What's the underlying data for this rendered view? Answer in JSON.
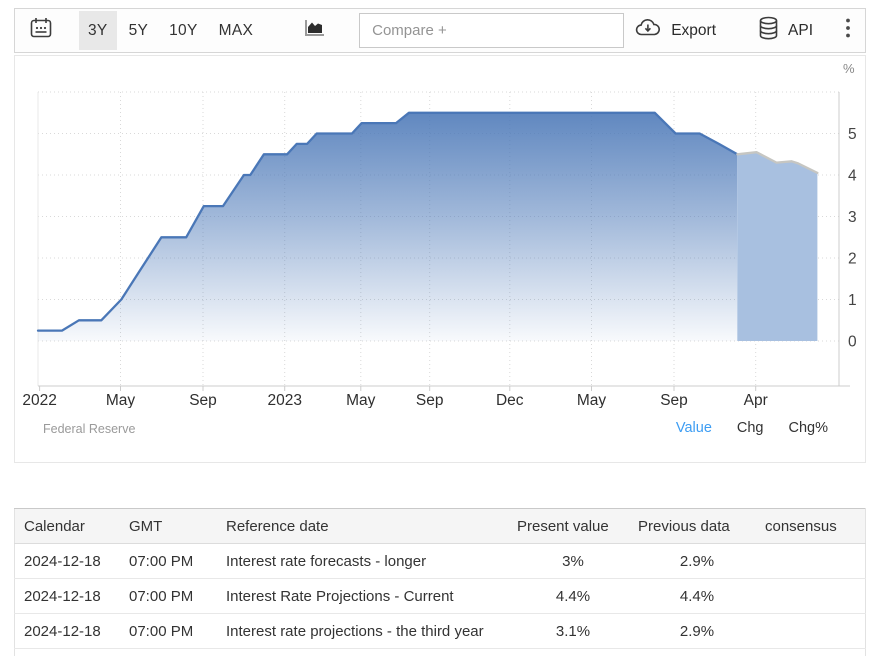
{
  "toolbar": {
    "calendar_icon": "calendar-icon",
    "ranges": [
      {
        "label": "3Y",
        "selected": true
      },
      {
        "label": "5Y",
        "selected": false
      },
      {
        "label": "10Y",
        "selected": false
      },
      {
        "label": "MAX",
        "selected": false
      }
    ],
    "chart_type_icon": "area-chart-icon",
    "compare_placeholder": "Compare +",
    "export_label": "Export",
    "export_icon": "cloud-download-icon",
    "api_label": "API",
    "api_icon": "database-icon",
    "menu_icon": "kebab-menu-icon"
  },
  "chart": {
    "unit_label": "%",
    "source_label": "Federal Reserve",
    "mode_links": [
      {
        "label": "Value",
        "active": true
      },
      {
        "label": "Chg",
        "active": false
      },
      {
        "label": "Chg%",
        "active": false
      }
    ],
    "colors": {
      "line": "#4a77b7",
      "forecast_fill": "#a8c0e0",
      "forecast_line": "#c6c6c2",
      "link_active": "#3d9df3",
      "grid": "#d9d9d9",
      "axis": "#cccccc"
    }
  },
  "chart_data": {
    "type": "area",
    "title": "",
    "xlabel": "",
    "ylabel": "%",
    "ylim": [
      0,
      6
    ],
    "yticks": [
      0,
      1,
      2,
      3,
      4,
      5
    ],
    "grid": true,
    "legend": "none",
    "xticks": [
      {
        "pos": 0.002,
        "label": "2022"
      },
      {
        "pos": 0.103,
        "label": "May"
      },
      {
        "pos": 0.206,
        "label": "Sep"
      },
      {
        "pos": 0.308,
        "label": "2023"
      },
      {
        "pos": 0.403,
        "label": "May"
      },
      {
        "pos": 0.489,
        "label": "Sep"
      },
      {
        "pos": 0.589,
        "label": "Dec"
      },
      {
        "pos": 0.691,
        "label": "May"
      },
      {
        "pos": 0.794,
        "label": "Sep"
      },
      {
        "pos": 0.896,
        "label": "Apr"
      }
    ],
    "series": [
      {
        "name": "history",
        "color": "#4a77b7",
        "fill": "gradient",
        "points": [
          [
            0.0,
            0.25
          ],
          [
            0.03,
            0.25
          ],
          [
            0.051,
            0.5
          ],
          [
            0.079,
            0.5
          ],
          [
            0.104,
            1.0
          ],
          [
            0.129,
            1.75
          ],
          [
            0.154,
            2.5
          ],
          [
            0.185,
            2.5
          ],
          [
            0.207,
            3.25
          ],
          [
            0.231,
            3.25
          ],
          [
            0.257,
            4.0
          ],
          [
            0.265,
            4.0
          ],
          [
            0.282,
            4.5
          ],
          [
            0.311,
            4.5
          ],
          [
            0.323,
            4.75
          ],
          [
            0.336,
            4.75
          ],
          [
            0.348,
            5.0
          ],
          [
            0.392,
            5.0
          ],
          [
            0.404,
            5.25
          ],
          [
            0.447,
            5.25
          ],
          [
            0.463,
            5.5
          ],
          [
            0.77,
            5.5
          ],
          [
            0.796,
            5.0
          ],
          [
            0.826,
            5.0
          ],
          [
            0.85,
            4.75
          ],
          [
            0.873,
            4.5
          ]
        ]
      },
      {
        "name": "forecast",
        "color": "#c6c6c2",
        "fill": "#a8c0e0",
        "points": [
          [
            0.873,
            4.5
          ],
          [
            0.897,
            4.55
          ],
          [
            0.922,
            4.3
          ],
          [
            0.941,
            4.33
          ],
          [
            0.949,
            4.28
          ],
          [
            0.973,
            4.05
          ]
        ]
      }
    ]
  },
  "table": {
    "headers": [
      "Calendar",
      "GMT",
      "Reference date",
      "Present value",
      "Previous data",
      "consensus"
    ],
    "rows": [
      [
        "2024-12-18",
        "07:00 PM",
        "Interest rate forecasts - longer",
        "3%",
        "2.9%",
        ""
      ],
      [
        "2024-12-18",
        "07:00 PM",
        "Interest Rate Projections - Current",
        "4.4%",
        "4.4%",
        ""
      ],
      [
        "2024-12-18",
        "07:00 PM",
        "Interest rate projections - the third year",
        "3.1%",
        "2.9%",
        ""
      ]
    ]
  }
}
